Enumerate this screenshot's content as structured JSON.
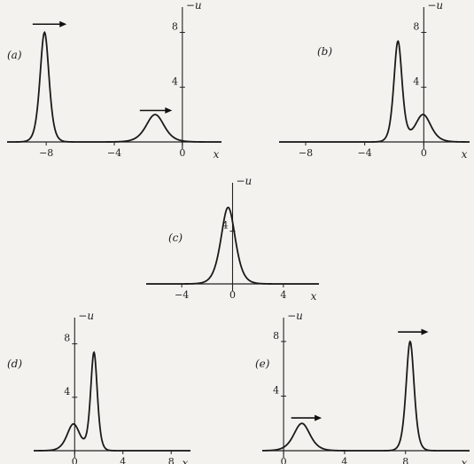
{
  "chart_data": [
    {
      "type": "line",
      "panel_label": "(a)",
      "xlabel": "x",
      "ylabel": "−u",
      "xlim": [
        -10.3,
        2.3
      ],
      "ylim": [
        0,
        9.2
      ],
      "xticks": [
        {
          "v": -8,
          "t": "−8"
        },
        {
          "v": -4,
          "t": "−4"
        },
        {
          "v": 0,
          "t": "0"
        }
      ],
      "yticks": [
        {
          "v": 4,
          "t": "4"
        },
        {
          "v": 8,
          "t": "8"
        }
      ],
      "series": [
        {
          "pulses": [
            {
              "center": -8.1,
              "amp": 8,
              "width": 0.353
            },
            {
              "center": -1.6,
              "amp": 2,
              "width": 0.707
            }
          ]
        }
      ],
      "arrows": [
        {
          "x0": -8.8,
          "x1": -6.8,
          "y": 8.6
        },
        {
          "x0": -2.5,
          "x1": -0.6,
          "y": 2.3
        }
      ]
    },
    {
      "type": "line",
      "panel_label": "(b)",
      "xlabel": "x",
      "ylabel": "−u",
      "xlim": [
        -9.8,
        3.1
      ],
      "ylim": [
        0,
        9.2
      ],
      "xticks": [
        {
          "v": -8,
          "t": "−8"
        },
        {
          "v": -4,
          "t": "−4"
        },
        {
          "v": 0,
          "t": "0"
        }
      ],
      "yticks": [
        {
          "v": 4,
          "t": "4"
        },
        {
          "v": 8,
          "t": "8"
        }
      ],
      "series": [
        {
          "pulses": [
            {
              "center": -1.75,
              "amp": 7.3,
              "width": 0.37
            },
            {
              "center": -0.05,
              "amp": 2.0,
              "width": 0.707
            }
          ]
        }
      ],
      "arrows": []
    },
    {
      "type": "line",
      "panel_label": "(c)",
      "xlabel": "x",
      "ylabel": "−u",
      "xlim": [
        -6.8,
        6.8
      ],
      "ylim": [
        0,
        7.0
      ],
      "xticks": [
        {
          "v": -4,
          "t": "−4"
        },
        {
          "v": 0,
          "t": "0"
        },
        {
          "v": 4,
          "t": "4"
        }
      ],
      "yticks": [
        {
          "v": 4,
          "t": "4"
        }
      ],
      "series": [
        {
          "pulses": [
            {
              "center": -0.35,
              "amp": 5.8,
              "width": 0.75
            }
          ]
        }
      ],
      "arrows": []
    },
    {
      "type": "line",
      "panel_label": "(d)",
      "xlabel": "x",
      "ylabel": "−u",
      "xlim": [
        -3.4,
        9.6
      ],
      "ylim": [
        0,
        9.3
      ],
      "xticks": [
        {
          "v": 0,
          "t": "0"
        },
        {
          "v": 4,
          "t": "4"
        },
        {
          "v": 8,
          "t": "8"
        }
      ],
      "yticks": [
        {
          "v": 4,
          "t": "4"
        },
        {
          "v": 8,
          "t": "8"
        }
      ],
      "series": [
        {
          "pulses": [
            {
              "center": 1.6,
              "amp": 7.3,
              "width": 0.37
            },
            {
              "center": -0.1,
              "amp": 2.0,
              "width": 0.707
            }
          ]
        }
      ],
      "arrows": []
    },
    {
      "type": "line",
      "panel_label": "(e)",
      "xlabel": "x",
      "ylabel": "−u",
      "xlim": [
        -1.4,
        12.2
      ],
      "ylim": [
        0,
        9.1
      ],
      "xticks": [
        {
          "v": 0,
          "t": "0"
        },
        {
          "v": 4,
          "t": "4"
        },
        {
          "v": 8,
          "t": "8"
        }
      ],
      "yticks": [
        {
          "v": 4,
          "t": "4"
        },
        {
          "v": 8,
          "t": "8"
        }
      ],
      "series": [
        {
          "pulses": [
            {
              "center": 8.3,
              "amp": 8,
              "width": 0.353
            },
            {
              "center": 1.2,
              "amp": 2,
              "width": 0.707
            }
          ]
        }
      ],
      "arrows": [
        {
          "x0": 7.5,
          "x1": 9.5,
          "y": 8.7
        },
        {
          "x0": 0.5,
          "x1": 2.5,
          "y": 2.4
        }
      ]
    }
  ]
}
